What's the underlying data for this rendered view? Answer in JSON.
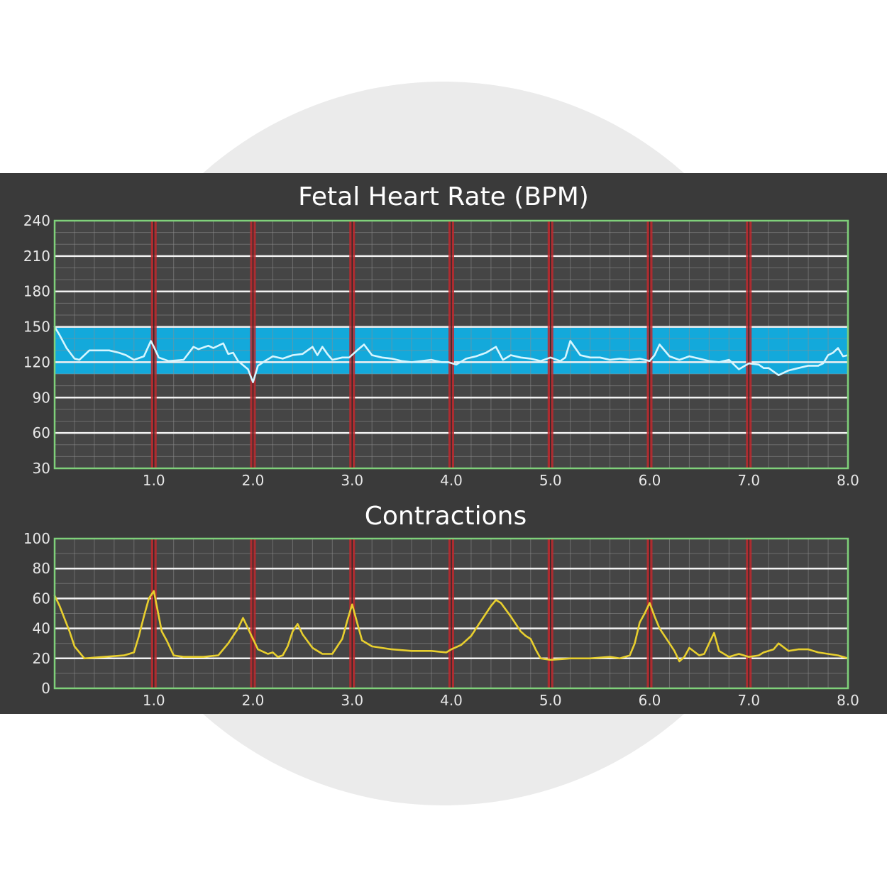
{
  "chart_data": [
    {
      "type": "line",
      "title": "Fetal Heart Rate (BPM)",
      "xlim": [
        0,
        8
      ],
      "ylim": [
        30,
        240
      ],
      "x_ticks": [
        "1.0",
        "2.0",
        "3.0",
        "4.0",
        "5.0",
        "6.0",
        "7.0",
        "8.0"
      ],
      "y_ticks": [
        "240",
        "210",
        "180",
        "150",
        "120",
        "90",
        "60",
        "30"
      ],
      "normal_band": [
        110,
        150
      ],
      "grid": true,
      "colors": {
        "line": "#d6f6ff",
        "band": "#0fb2e8",
        "marker": "#c0282d",
        "frame": "#7fd07a",
        "background": "#3a3a3a"
      },
      "series": [
        {
          "x": [
            0,
            0.05,
            0.12,
            0.2,
            0.25,
            0.35,
            0.45,
            0.55,
            0.65,
            0.72,
            0.8,
            0.9,
            0.97,
            1.0,
            1.05,
            1.15,
            1.3,
            1.4,
            1.45,
            1.55,
            1.6,
            1.7,
            1.75,
            1.8,
            1.85,
            1.95,
            2.0,
            2.05,
            2.12,
            2.2,
            2.3,
            2.4,
            2.5,
            2.6,
            2.65,
            2.7,
            2.75,
            2.8,
            2.9,
            2.97,
            3.05,
            3.12,
            3.2,
            3.3,
            3.4,
            3.5,
            3.6,
            3.7,
            3.8,
            3.9,
            3.97,
            4.05,
            4.15,
            4.25,
            4.35,
            4.45,
            4.52,
            4.6,
            4.7,
            4.8,
            4.9,
            5.0,
            5.1,
            5.15,
            5.2,
            5.3,
            5.4,
            5.5,
            5.6,
            5.7,
            5.8,
            5.9,
            6.0,
            6.05,
            6.1,
            6.2,
            6.3,
            6.4,
            6.5,
            6.6,
            6.7,
            6.8,
            6.9,
            7.0,
            7.1,
            7.15,
            7.2,
            7.3,
            7.4,
            7.5,
            7.6,
            7.7,
            7.75,
            7.8,
            7.85,
            7.9,
            7.95,
            8.0
          ],
          "y": [
            150,
            143,
            132,
            123,
            122,
            130,
            130,
            130,
            128,
            126,
            122,
            125,
            138,
            133,
            124,
            121,
            122,
            133,
            131,
            134,
            132,
            136,
            127,
            128,
            121,
            114,
            103,
            117,
            121,
            125,
            123,
            126,
            127,
            133,
            126,
            133,
            127,
            122,
            124,
            124,
            130,
            135,
            126,
            124,
            123,
            121,
            120,
            121,
            122,
            120,
            120,
            118,
            123,
            125,
            128,
            133,
            122,
            126,
            124,
            123,
            121,
            124,
            121,
            124,
            138,
            126,
            124,
            124,
            122,
            123,
            122,
            123,
            121,
            126,
            135,
            125,
            122,
            125,
            123,
            121,
            120,
            122,
            114,
            119,
            118,
            115,
            115,
            109,
            113,
            115,
            117,
            117,
            119,
            126,
            128,
            132,
            125,
            126
          ]
        }
      ]
    },
    {
      "type": "line",
      "title": "Contractions",
      "xlim": [
        0,
        8
      ],
      "ylim": [
        0,
        100
      ],
      "x_ticks": [
        "1.0",
        "2.0",
        "3.0",
        "4.0",
        "5.0",
        "6.0",
        "7.0",
        "8.0"
      ],
      "y_ticks": [
        "100",
        "80",
        "60",
        "40",
        "20",
        "0"
      ],
      "grid": true,
      "colors": {
        "line": "#e8cf2e",
        "marker": "#c0282d",
        "frame": "#7fd07a",
        "background": "#3a3a3a"
      },
      "series": [
        {
          "x": [
            0,
            0.05,
            0.15,
            0.2,
            0.3,
            0.5,
            0.7,
            0.8,
            0.85,
            0.9,
            0.95,
            1.0,
            1.03,
            1.08,
            1.13,
            1.2,
            1.3,
            1.5,
            1.65,
            1.75,
            1.85,
            1.9,
            1.95,
            2.05,
            2.15,
            2.2,
            2.25,
            2.3,
            2.35,
            2.4,
            2.45,
            2.5,
            2.6,
            2.7,
            2.8,
            2.9,
            2.95,
            3.0,
            3.05,
            3.1,
            3.2,
            3.4,
            3.6,
            3.8,
            3.95,
            4.0,
            4.1,
            4.2,
            4.3,
            4.4,
            4.45,
            4.5,
            4.6,
            4.7,
            4.75,
            4.8,
            4.85,
            4.9,
            5.0,
            5.2,
            5.4,
            5.6,
            5.7,
            5.8,
            5.85,
            5.9,
            5.95,
            6.0,
            6.05,
            6.1,
            6.2,
            6.25,
            6.3,
            6.35,
            6.4,
            6.5,
            6.55,
            6.6,
            6.65,
            6.7,
            6.8,
            6.9,
            7.0,
            7.1,
            7.15,
            7.2,
            7.25,
            7.3,
            7.4,
            7.5,
            7.6,
            7.7,
            7.8,
            7.9,
            8.0
          ],
          "y": [
            62,
            55,
            38,
            28,
            20,
            21,
            22,
            24,
            35,
            48,
            60,
            65,
            55,
            38,
            32,
            22,
            21,
            21,
            22,
            30,
            40,
            47,
            40,
            26,
            23,
            24,
            21,
            22,
            28,
            38,
            43,
            36,
            27,
            23,
            23,
            33,
            45,
            56,
            44,
            32,
            28,
            26,
            25,
            25,
            24,
            26,
            29,
            35,
            45,
            55,
            59,
            57,
            48,
            38,
            35,
            33,
            26,
            20,
            19,
            20,
            20,
            21,
            20,
            22,
            30,
            44,
            50,
            57,
            48,
            40,
            30,
            25,
            18,
            21,
            27,
            22,
            23,
            30,
            37,
            25,
            21,
            23,
            21,
            22,
            24,
            25,
            26,
            30,
            25,
            26,
            26,
            24,
            23,
            22,
            20
          ]
        }
      ]
    }
  ]
}
